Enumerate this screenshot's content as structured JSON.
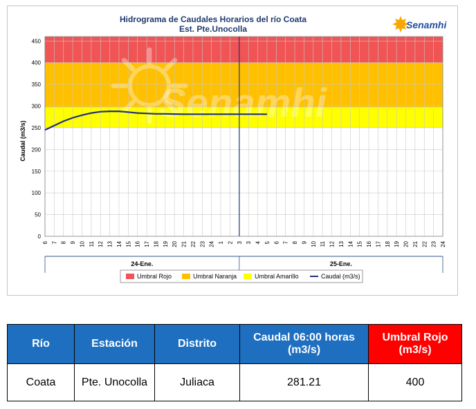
{
  "chart_data": {
    "type": "line",
    "title": "Hidrograma de Caudales Horarios del río Coata",
    "subtitle": "Est. Pte.Unocolla",
    "ylabel": "Caudal  (m3/s)",
    "ylim": [
      0,
      460
    ],
    "yticks": [
      0,
      50,
      100,
      150,
      200,
      250,
      300,
      350,
      400,
      450
    ],
    "x_hour_labels": [
      "6",
      "7",
      "8",
      "9",
      "10",
      "11",
      "12",
      "13",
      "14",
      "15",
      "16",
      "17",
      "18",
      "19",
      "20",
      "21",
      "22",
      "23",
      "24",
      "1",
      "2",
      "3",
      "3",
      "4",
      "5",
      "6",
      "7",
      "8",
      "9",
      "10",
      "11",
      "12",
      "13",
      "14",
      "15",
      "16",
      "17",
      "18",
      "19",
      "20",
      "21",
      "22",
      "23",
      "24"
    ],
    "day_groups": [
      {
        "label": "24-Ene.",
        "start_index": 0,
        "end_index": 21
      },
      {
        "label": "25-Ene.",
        "start_index": 21,
        "end_index": 43
      }
    ],
    "current_time_index": 21,
    "bands": [
      {
        "name": "Umbral Rojo",
        "from": 400,
        "to": 460,
        "color": "#f05454"
      },
      {
        "name": "Umbral Naranja",
        "from": 297,
        "to": 400,
        "color": "#ffc000"
      },
      {
        "name": "Umbral Amarillo",
        "from": 250,
        "to": 297,
        "color": "#ffff00"
      }
    ],
    "series": [
      {
        "name": "Caudal (m3/s)",
        "color": "#1f2d7a",
        "x": [
          0,
          1,
          2,
          3,
          4,
          5,
          6,
          7,
          8,
          9,
          10,
          11,
          12,
          13,
          14,
          15,
          16,
          17,
          18,
          19,
          20,
          21,
          22,
          23,
          24
        ],
        "values": [
          245,
          255,
          265,
          273,
          279,
          284,
          287,
          288,
          288,
          286,
          284,
          283,
          282,
          282,
          281.5,
          281.3,
          281.2,
          281.2,
          281.2,
          281.2,
          281.2,
          281.21,
          281.21,
          281.21,
          281.21
        ]
      }
    ],
    "legend": {
      "position": "bottom",
      "entries": [
        {
          "label": "Umbral Rojo",
          "color": "#f05454",
          "kind": "box"
        },
        {
          "label": "Umbral Naranja",
          "color": "#ffc000",
          "kind": "box"
        },
        {
          "label": "Umbral Amarillo",
          "color": "#ffff00",
          "kind": "box"
        },
        {
          "label": "Caudal (m3/s)",
          "color": "#1f2d7a",
          "kind": "line"
        }
      ]
    },
    "grid": true,
    "watermark": "Senamhi",
    "logo": "Senamhi"
  },
  "table": {
    "headers": [
      "Río",
      "Estación",
      "Distrito",
      "Caudal  06:00 horas (m3/s)",
      "Umbral Rojo (m3/s)"
    ],
    "header_colors": [
      "#1f6fc0",
      "#1f6fc0",
      "#1f6fc0",
      "#1f6fc0",
      "#ff0000"
    ],
    "rows": [
      [
        "Coata",
        "Pte. Unocolla",
        "Juliaca",
        "281.21",
        "400"
      ]
    ]
  }
}
